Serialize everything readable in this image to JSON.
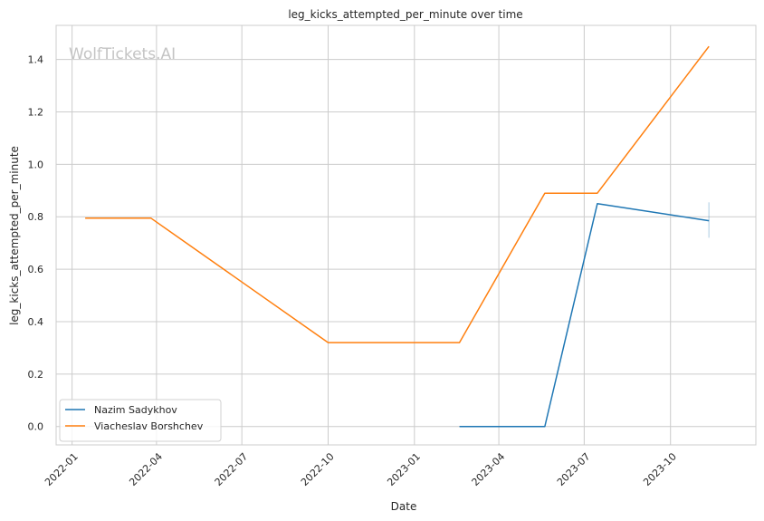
{
  "chart_data": {
    "type": "line",
    "title": "leg_kicks_attempted_per_minute over time",
    "xlabel": "Date",
    "ylabel": "leg_kicks_attempted_per_minute",
    "watermark": "WolfTickets.AI",
    "xlim": [
      "2021-12-15",
      "2023-12-31"
    ],
    "ylim": [
      -0.07,
      1.53
    ],
    "x_ticks": [
      "2022-01",
      "2022-04",
      "2022-07",
      "2022-10",
      "2023-01",
      "2023-04",
      "2023-07",
      "2023-10"
    ],
    "y_ticks": [
      0.0,
      0.2,
      0.4,
      0.6,
      0.8,
      1.0,
      1.2,
      1.4
    ],
    "grid": true,
    "legend_position": "lower-left",
    "series": [
      {
        "name": "Nazim Sadykhov",
        "color": "#1f77b4",
        "points": [
          {
            "x": "2023-02-18",
            "y": 0.0
          },
          {
            "x": "2023-05-20",
            "y": 0.0
          },
          {
            "x": "2023-07-15",
            "y": 0.85
          },
          {
            "x": "2023-11-11",
            "y": 0.785
          }
        ],
        "error_bar": {
          "x": "2023-11-11",
          "low": 0.72,
          "high": 0.855
        }
      },
      {
        "name": "Viacheslav Borshchev",
        "color": "#ff7f0e",
        "points": [
          {
            "x": "2022-01-15",
            "y": 0.795
          },
          {
            "x": "2022-03-26",
            "y": 0.795
          },
          {
            "x": "2022-10-01",
            "y": 0.32
          },
          {
            "x": "2023-02-18",
            "y": 0.32
          },
          {
            "x": "2023-05-20",
            "y": 0.89
          },
          {
            "x": "2023-07-15",
            "y": 0.89
          },
          {
            "x": "2023-11-11",
            "y": 1.45
          }
        ]
      }
    ]
  }
}
